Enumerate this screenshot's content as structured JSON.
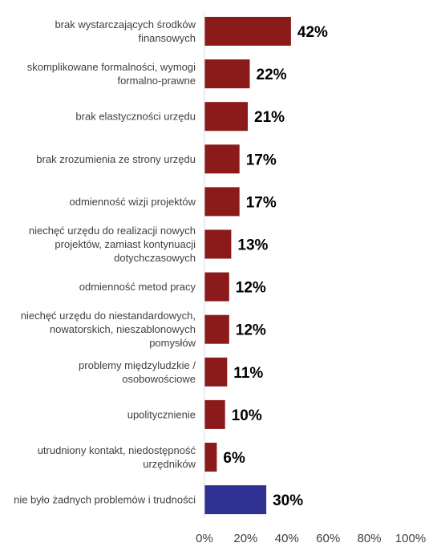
{
  "chart_data": {
    "type": "bar",
    "orientation": "horizontal",
    "categories": [
      [
        "brak wystarczających środków",
        "finansowych"
      ],
      [
        "skomplikowane formalności, wymogi",
        "formalno-prawne"
      ],
      [
        "brak elastyczności urzędu"
      ],
      [
        "brak zrozumienia ze strony urzędu"
      ],
      [
        "odmienność wizji projektów"
      ],
      [
        "niechęć urzędu do realizacji nowych",
        "projektów, zamiast kontynuacji",
        "dotychczasowych"
      ],
      [
        "odmienność metod pracy"
      ],
      [
        "niechęć urzędu do niestandardowych,",
        "nowatorskich, nieszablonowych",
        "pomysłów"
      ],
      [
        "problemy międzyludzkie /",
        "osobowościowe"
      ],
      [
        "upolitycznienie"
      ],
      [
        "utrudniony kontakt, niedostępność",
        "urzędników"
      ],
      [
        "nie było żadnych problemów i trudności"
      ]
    ],
    "values": [
      42,
      22,
      21,
      17,
      17,
      13,
      12,
      12,
      11,
      10,
      6,
      30
    ],
    "value_labels": [
      "42%",
      "22%",
      "21%",
      "17%",
      "17%",
      "13%",
      "12%",
      "12%",
      "11%",
      "10%",
      "6%",
      "30%"
    ],
    "bar_colors": [
      "#8b1a1a",
      "#8b1a1a",
      "#8b1a1a",
      "#8b1a1a",
      "#8b1a1a",
      "#8b1a1a",
      "#8b1a1a",
      "#8b1a1a",
      "#8b1a1a",
      "#8b1a1a",
      "#8b1a1a",
      "#2e3192"
    ],
    "x_ticks": [
      "0%",
      "20%",
      "40%",
      "60%",
      "80%",
      "100%"
    ],
    "xlim": [
      0,
      100
    ],
    "grid": false,
    "axis_line_color": "#d9d9d9"
  }
}
